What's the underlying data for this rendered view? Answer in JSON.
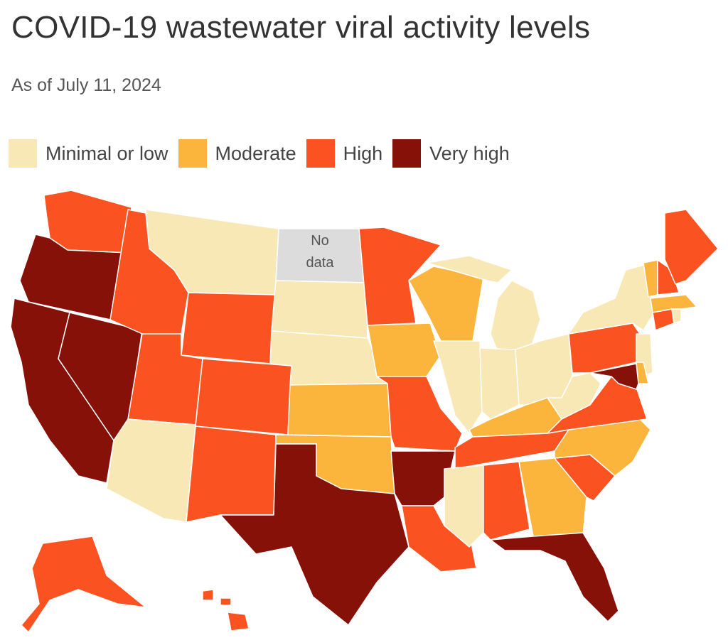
{
  "title": "COVID-19 wastewater viral activity levels",
  "subtitle": "As of July 11, 2024",
  "legend": [
    {
      "label": "Minimal or low",
      "level": "low",
      "color": "#f7e8b6"
    },
    {
      "label": "Moderate",
      "level": "moderate",
      "color": "#fbb43c"
    },
    {
      "label": "High",
      "level": "high",
      "color": "#fb5222"
    },
    {
      "label": "Very high",
      "level": "very-high",
      "color": "#861108"
    }
  ],
  "nodata": {
    "line1": "No",
    "line2": "data",
    "color": "#dcdcdc"
  },
  "states": {
    "WA": "high",
    "OR": "very-high",
    "CA": "very-high",
    "NV": "very-high",
    "ID": "high",
    "MT": "low",
    "WY": "high",
    "UT": "high",
    "AZ": "low",
    "CO": "high",
    "NM": "high",
    "ND": "nodata",
    "SD": "low",
    "NE": "low",
    "KS": "moderate",
    "OK": "moderate",
    "TX": "very-high",
    "MN": "high",
    "IA": "moderate",
    "MO": "high",
    "AR": "very-high",
    "LA": "high",
    "WI": "moderate",
    "IL": "low",
    "MI": "low",
    "IN": "low",
    "OH": "low",
    "KY": "moderate",
    "TN": "high",
    "MS": "low",
    "AL": "high",
    "GA": "moderate",
    "FL": "very-high",
    "SC": "high",
    "NC": "moderate",
    "VA": "high",
    "WV": "low",
    "PA": "high",
    "NY": "low",
    "NJ": "low",
    "DE": "moderate",
    "MD": "very-high",
    "CT": "high",
    "RI": "low",
    "MA": "moderate",
    "VT": "moderate",
    "NH": "high",
    "ME": "high",
    "AK": "high",
    "HI": "high"
  }
}
